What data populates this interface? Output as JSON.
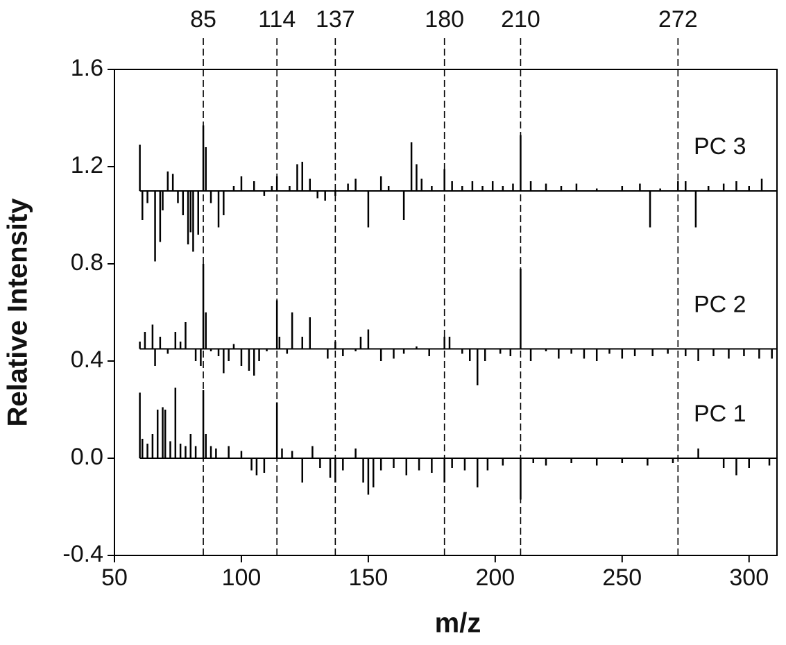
{
  "chart_data": {
    "type": "stick",
    "xlabel": "m/z",
    "ylabel": "Relative Intensity",
    "xlim": [
      50,
      311
    ],
    "ylim": [
      -0.4,
      1.6
    ],
    "xticks": [
      50,
      100,
      150,
      200,
      250,
      300
    ],
    "yticks": [
      -0.4,
      {
        "value": 0,
        "label": "0.0"
      },
      0.4,
      0.8,
      1.2,
      1.6
    ],
    "marker_lines": [
      85,
      114,
      137,
      180,
      210,
      272
    ],
    "series": [
      {
        "name": "PC 1",
        "color": "#000000",
        "baseline": 0,
        "x": [
          60,
          61,
          63,
          65,
          67,
          69,
          70,
          72,
          74,
          76,
          78,
          80,
          82,
          85,
          86,
          88,
          90,
          95,
          100,
          104,
          106,
          109,
          114,
          116,
          120,
          124,
          128,
          131,
          135,
          137,
          140,
          145,
          148,
          150,
          152,
          155,
          160,
          165,
          170,
          175,
          180,
          183,
          188,
          193,
          197,
          203,
          210,
          215,
          220,
          230,
          240,
          250,
          260,
          270,
          280,
          290,
          295,
          300,
          308
        ],
        "values": [
          0.27,
          0.08,
          0.06,
          0.1,
          0.2,
          0.21,
          0.2,
          0.07,
          0.29,
          0.06,
          0.05,
          0.1,
          0.05,
          0.28,
          0.1,
          0.05,
          0.04,
          0.05,
          0.03,
          -0.05,
          -0.07,
          -0.06,
          0.23,
          0.04,
          0.03,
          -0.1,
          0.05,
          -0.04,
          -0.08,
          -0.1,
          -0.05,
          0.04,
          -0.1,
          -0.15,
          -0.12,
          -0.05,
          -0.04,
          -0.07,
          -0.05,
          -0.06,
          -0.1,
          -0.04,
          -0.05,
          -0.12,
          -0.05,
          -0.03,
          -0.17,
          -0.02,
          -0.03,
          -0.02,
          -0.03,
          -0.02,
          -0.03,
          -0.02,
          0.04,
          -0.04,
          -0.07,
          -0.04,
          -0.03
        ]
      },
      {
        "name": "PC 2",
        "color": "#000000",
        "baseline": 0.45,
        "x": [
          60,
          62,
          65,
          66,
          68,
          71,
          74,
          76,
          78,
          80,
          82,
          84,
          85,
          86,
          88,
          91,
          93,
          95,
          97,
          100,
          103,
          105,
          107,
          110,
          114,
          115,
          118,
          120,
          124,
          127,
          130,
          134,
          137,
          140,
          145,
          147,
          150,
          155,
          160,
          164,
          169,
          174,
          180,
          182,
          187,
          190,
          193,
          196,
          202,
          206,
          210,
          214,
          220,
          225,
          230,
          235,
          240,
          245,
          250,
          255,
          262,
          268,
          275,
          280,
          286,
          292,
          298,
          304,
          309
        ],
        "values": [
          0.48,
          0.52,
          0.55,
          0.38,
          0.5,
          0.43,
          0.52,
          0.48,
          0.56,
          0.45,
          0.4,
          0.38,
          0.8,
          0.6,
          0.44,
          0.42,
          0.35,
          0.4,
          0.47,
          0.38,
          0.36,
          0.34,
          0.4,
          0.44,
          0.65,
          0.5,
          0.43,
          0.6,
          0.5,
          0.58,
          0.45,
          0.41,
          0.48,
          0.42,
          0.44,
          0.5,
          0.53,
          0.4,
          0.41,
          0.43,
          0.46,
          0.42,
          0.5,
          0.5,
          0.43,
          0.4,
          0.3,
          0.4,
          0.43,
          0.42,
          0.78,
          0.4,
          0.44,
          0.41,
          0.43,
          0.41,
          0.4,
          0.43,
          0.41,
          0.42,
          0.42,
          0.43,
          0.42,
          0.4,
          0.42,
          0.41,
          0.42,
          0.41,
          0.41
        ]
      },
      {
        "name": "PC 3",
        "color": "#000000",
        "baseline": 1.1,
        "x": [
          60,
          61,
          63,
          66,
          68,
          69,
          71,
          73,
          75,
          77,
          79,
          80,
          81,
          83,
          85,
          86,
          88,
          91,
          93,
          97,
          100,
          105,
          109,
          112,
          114,
          119,
          122,
          124,
          127,
          130,
          133,
          137,
          142,
          145,
          150,
          155,
          158,
          164,
          167,
          169,
          171,
          175,
          180,
          183,
          187,
          191,
          195,
          199,
          203,
          207,
          210,
          214,
          220,
          226,
          232,
          240,
          250,
          257,
          261,
          265,
          272,
          275,
          279,
          284,
          290,
          295,
          300,
          305
        ],
        "values": [
          1.29,
          0.98,
          1.05,
          0.81,
          0.89,
          1.02,
          1.18,
          1.17,
          1.05,
          1.0,
          0.88,
          0.93,
          0.85,
          0.92,
          1.37,
          1.28,
          1.05,
          0.95,
          1.0,
          1.12,
          1.16,
          1.14,
          1.08,
          1.12,
          1.16,
          1.12,
          1.21,
          1.22,
          1.15,
          1.07,
          1.06,
          1.08,
          1.13,
          1.15,
          0.95,
          1.16,
          1.12,
          0.98,
          1.3,
          1.21,
          1.15,
          1.12,
          1.19,
          1.14,
          1.12,
          1.14,
          1.12,
          1.14,
          1.12,
          1.13,
          1.33,
          1.14,
          1.13,
          1.12,
          1.13,
          1.11,
          1.12,
          1.13,
          0.95,
          1.11,
          1.14,
          1.14,
          0.95,
          1.12,
          1.13,
          1.14,
          1.12,
          1.15
        ]
      }
    ]
  }
}
